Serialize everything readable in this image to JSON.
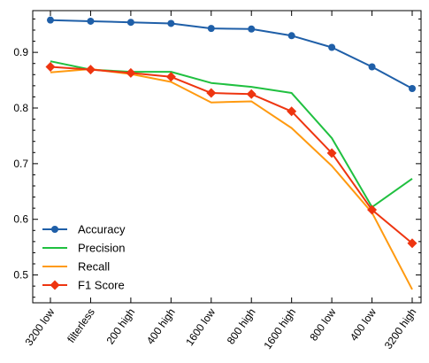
{
  "chart_data": {
    "type": "line",
    "title": "",
    "xlabel": "",
    "ylabel": "",
    "categories": [
      "3200 low",
      "filterless",
      "200 high",
      "400 high",
      "1600 low",
      "800 high",
      "1600 high",
      "800 low",
      "400 low",
      "3200 high"
    ],
    "ylim": [
      0.45,
      0.975
    ],
    "yticks": [
      0.5,
      0.6,
      0.7,
      0.8,
      0.9
    ],
    "ytick_labels": [
      "0.5",
      "0.6",
      "0.7",
      "0.8",
      "0.9"
    ],
    "grid": false,
    "legend_position": "lower-left",
    "series": [
      {
        "name": "Accuracy",
        "color": "#1f5fa8",
        "marker": "circle",
        "values": [
          0.958,
          0.956,
          0.954,
          0.952,
          0.943,
          0.942,
          0.93,
          0.909,
          0.874,
          0.835
        ]
      },
      {
        "name": "Precision",
        "color": "#20c040",
        "marker": "none",
        "values": [
          0.884,
          0.869,
          0.865,
          0.865,
          0.845,
          0.838,
          0.827,
          0.746,
          0.622,
          0.673
        ]
      },
      {
        "name": "Recall",
        "color": "#ff9a10",
        "marker": "none",
        "values": [
          0.864,
          0.87,
          0.861,
          0.847,
          0.81,
          0.812,
          0.764,
          0.696,
          0.612,
          0.474
        ]
      },
      {
        "name": "F1 Score",
        "color": "#ee3510",
        "marker": "diamond",
        "values": [
          0.874,
          0.869,
          0.863,
          0.856,
          0.827,
          0.825,
          0.794,
          0.719,
          0.617,
          0.557
        ]
      }
    ]
  }
}
